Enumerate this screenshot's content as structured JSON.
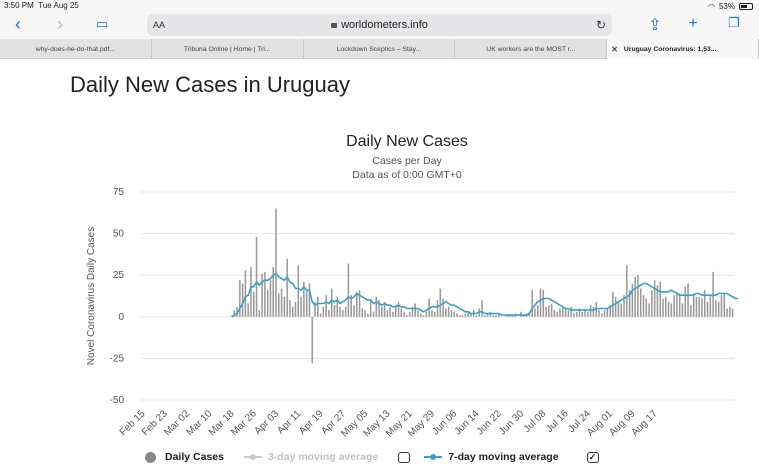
{
  "status": {
    "time": "3:50 PM",
    "date": "Tue Aug 25",
    "battery": "53%"
  },
  "browser": {
    "aa_label": "AA",
    "url": "worldometers.info",
    "icons": [
      "back-icon",
      "forward-icon",
      "book-icon",
      "reload-icon",
      "share-icon",
      "new-tab-icon",
      "tabs-icon"
    ]
  },
  "tabs": [
    {
      "label": "why-does-he-do-that.pdf..."
    },
    {
      "label": "Tribuna Online | Home | Tri..."
    },
    {
      "label": "Lockdown Sceptics – Stay..."
    },
    {
      "label": "UK workers are the MOST r..."
    },
    {
      "label": "Uruguay Coronavirus: 1,53..."
    }
  ],
  "page": {
    "title": "Daily New Cases in Uruguay"
  },
  "chart_data": {
    "type": "bar",
    "title": "Daily New Cases",
    "subtitle": "Cases per Day",
    "subtitle2": "Data as of 0:00 GMT+0",
    "ylabel": "Novel Coronavirus Daily Cases",
    "xlabel": "",
    "ylim": [
      -50,
      75
    ],
    "yticks": [
      "75",
      "50",
      "25",
      "0",
      "-25",
      "-50"
    ],
    "ytick_values": [
      75,
      50,
      25,
      0,
      -25,
      -50
    ],
    "xtick_labels": [
      "Feb 15",
      "Feb 23",
      "Mar 02",
      "Mar 10",
      "Mar 18",
      "Mar 26",
      "Apr 03",
      "Apr 11",
      "Apr 19",
      "Apr 27",
      "May 05",
      "May 13",
      "May 21",
      "May 29",
      "Jun 06",
      "Jun 14",
      "Jun 22",
      "Jun 30",
      "Jul 08",
      "Jul 16",
      "Jul 24",
      "Aug 01",
      "Aug 09",
      "Aug 17"
    ],
    "start_date": "Feb 15",
    "grid": true,
    "series": [
      {
        "name": "Daily Cases",
        "type": "bar",
        "color": "#999999",
        "values": [
          0,
          0,
          0,
          0,
          0,
          0,
          0,
          0,
          0,
          0,
          0,
          0,
          0,
          0,
          0,
          0,
          0,
          0,
          0,
          0,
          0,
          0,
          0,
          0,
          0,
          0,
          0,
          0,
          0,
          0,
          0,
          0,
          0,
          4,
          6,
          22,
          20,
          28,
          8,
          30,
          15,
          48,
          4,
          26,
          27,
          16,
          22,
          30,
          65,
          14,
          17,
          12,
          35,
          10,
          6,
          9,
          31,
          12,
          21,
          16,
          20,
          -28,
          9,
          12,
          2,
          6,
          13,
          4,
          17,
          7,
          12,
          6,
          4,
          6,
          32,
          13,
          7,
          15,
          16,
          5,
          4,
          2,
          11,
          3,
          12,
          10,
          6,
          9,
          4,
          6,
          3,
          7,
          9,
          5,
          3,
          1,
          3,
          6,
          8,
          4,
          2,
          1,
          3,
          11,
          4,
          3,
          10,
          17,
          11,
          5,
          6,
          4,
          3,
          2,
          1,
          1,
          2,
          3,
          2,
          4,
          1,
          5,
          10,
          1,
          2,
          3,
          1,
          1,
          2,
          0,
          0,
          1,
          1,
          1,
          2,
          0,
          3,
          1,
          2,
          3,
          16,
          5,
          7,
          17,
          16,
          6,
          7,
          8,
          4,
          3,
          5,
          6,
          5,
          4,
          6,
          2,
          3,
          5,
          3,
          4,
          3,
          7,
          6,
          9,
          4,
          2,
          4,
          5,
          7,
          15,
          12,
          9,
          8,
          13,
          31,
          16,
          20,
          24,
          25,
          17,
          13,
          11,
          8,
          16,
          22,
          19,
          21,
          11,
          12,
          9,
          8,
          13,
          15,
          14,
          8,
          18,
          20,
          7,
          14,
          12,
          12,
          11,
          16,
          9,
          13,
          27,
          10,
          9,
          13,
          14,
          5,
          6,
          5
        ],
        "values_note": ""
      },
      {
        "name": "3-day moving average",
        "type": "line",
        "color": "#cccccc",
        "visible": false,
        "values": []
      },
      {
        "name": "7-day moving average",
        "type": "line",
        "color": "#3aa0c9",
        "values": [
          0,
          0,
          0,
          0,
          0,
          0,
          0,
          0,
          0,
          0,
          0,
          0,
          0,
          0,
          0,
          0,
          0,
          0,
          0,
          0,
          0,
          0,
          0,
          0,
          0,
          0,
          0,
          0,
          0,
          0,
          0,
          0,
          0,
          1,
          2,
          5,
          8,
          12,
          13,
          18,
          18,
          21,
          19,
          21,
          22,
          22,
          23,
          25,
          26,
          24,
          23,
          22,
          24,
          21,
          20,
          17,
          17,
          16,
          18,
          16,
          16,
          9,
          7,
          8,
          8,
          8,
          9,
          8,
          10,
          9,
          10,
          8,
          9,
          10,
          12,
          11,
          12,
          14,
          13,
          12,
          11,
          10,
          10,
          8,
          9,
          8,
          7,
          8,
          7,
          7,
          6,
          6,
          7,
          6,
          6,
          5,
          5,
          5,
          5,
          5,
          4,
          3,
          4,
          5,
          6,
          6,
          6,
          7,
          8,
          9,
          8,
          7,
          7,
          6,
          5,
          4,
          3,
          3,
          2,
          2,
          2,
          3,
          3,
          2,
          2,
          2,
          2,
          2,
          2,
          1,
          1,
          1,
          1,
          1,
          1,
          1,
          1,
          1,
          1,
          2,
          5,
          7,
          9,
          10,
          11,
          11,
          11,
          10,
          9,
          8,
          7,
          6,
          5,
          5,
          4,
          4,
          4,
          4,
          4,
          4,
          4,
          4,
          4,
          5,
          5,
          5,
          5,
          5,
          6,
          7,
          8,
          9,
          10,
          11,
          12,
          13,
          16,
          17,
          18,
          19,
          20,
          20,
          19,
          18,
          17,
          16,
          15,
          15,
          15,
          15,
          16,
          15,
          14,
          13,
          13,
          13,
          13,
          13,
          13,
          14,
          14,
          13,
          13,
          13,
          13,
          13,
          13,
          14,
          14,
          14,
          14,
          13,
          12,
          11,
          11
        ]
      }
    ],
    "legend": [
      {
        "label": "Daily Cases",
        "state": "visible"
      },
      {
        "label": "3-day moving average",
        "state": "hidden"
      },
      {
        "label": "7-day moving average",
        "state": "visible"
      }
    ],
    "legend_placement": "bottom"
  }
}
